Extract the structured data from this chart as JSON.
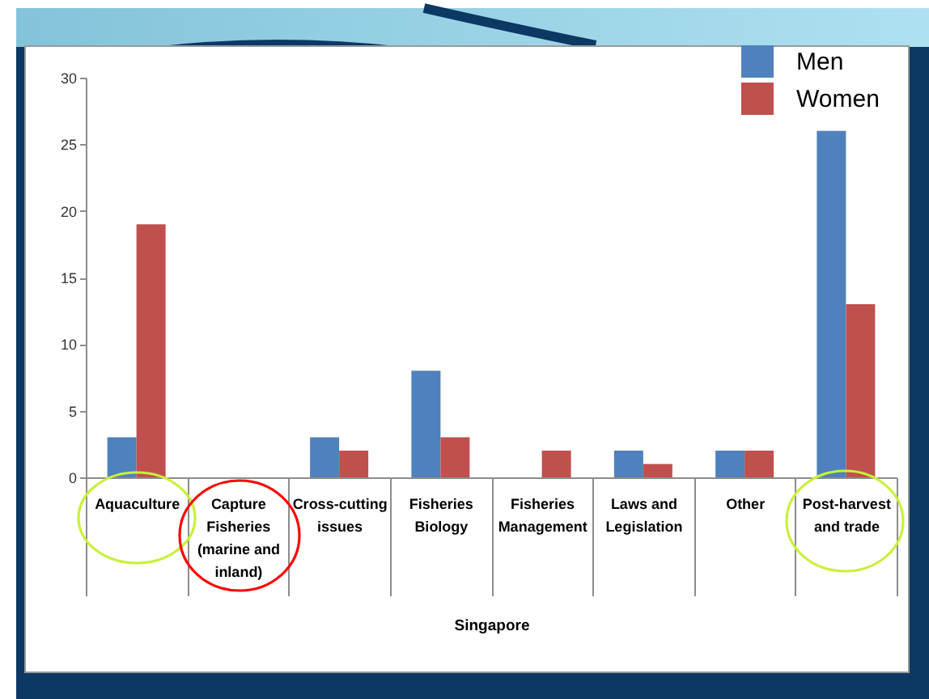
{
  "chart_data": {
    "type": "bar",
    "categories": [
      "Aquaculture",
      "Capture Fisheries (marine and inland)",
      "Cross-cutting issues",
      "Fisheries Biology",
      "Fisheries Management",
      "Laws and Legislation",
      "Other",
      "Post-harvest and trade"
    ],
    "xlabel": "Singapore",
    "series": [
      {
        "name": "Men",
        "color": "#4f81bd",
        "values": [
          3,
          null,
          3,
          8,
          null,
          2,
          2,
          26
        ]
      },
      {
        "name": "Women",
        "color": "#c0504d",
        "values": [
          19,
          null,
          2,
          3,
          2,
          1,
          2,
          13
        ]
      }
    ],
    "ylim": [
      0,
      30
    ],
    "yticks": [
      0,
      5,
      10,
      15,
      20,
      25,
      30
    ],
    "legend": "top right"
  }
}
